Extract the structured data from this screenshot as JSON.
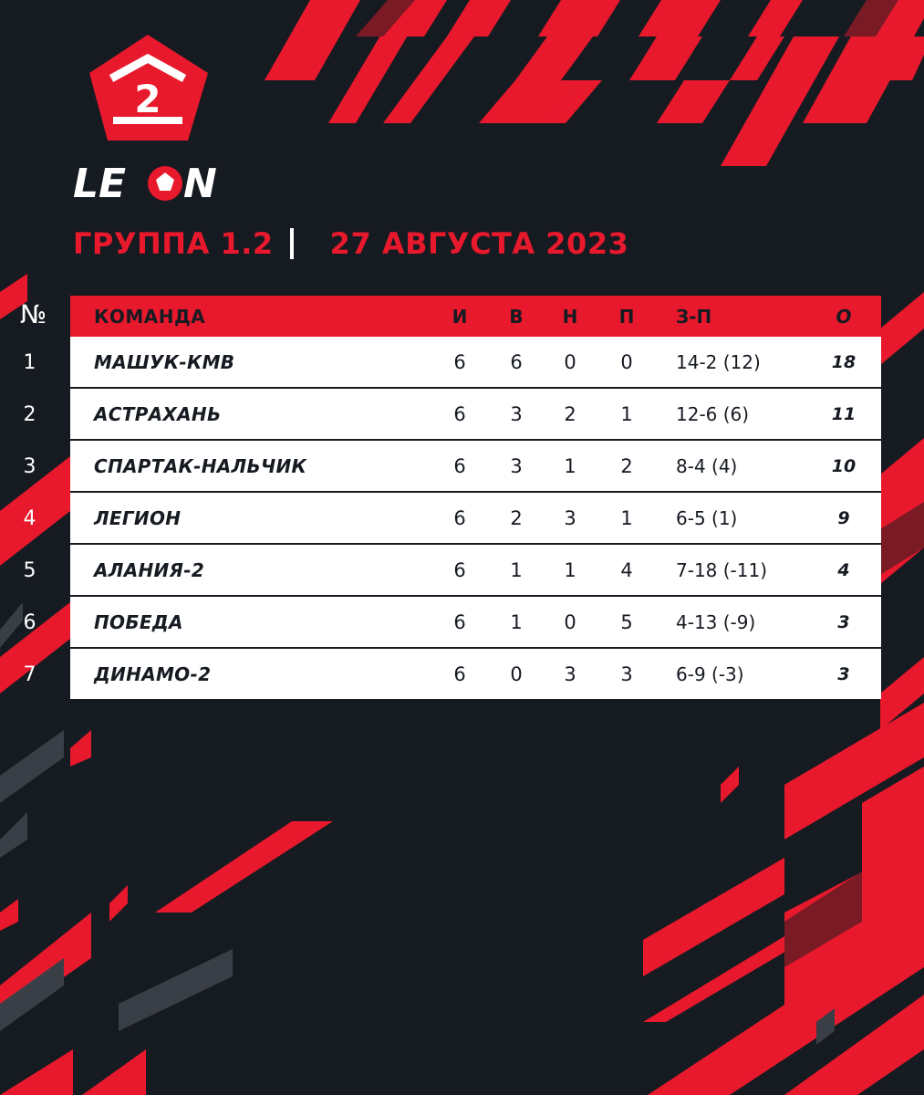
{
  "brand": {
    "logo_number": "2",
    "logo_text_left": "LE",
    "logo_text_right": "N"
  },
  "heading": {
    "group": "ГРУППА 1.2",
    "date": "27 АВГУСТА 2023"
  },
  "table": {
    "num_header": "№",
    "headers": {
      "team": "КОМАНДА",
      "played": "И",
      "won": "В",
      "drawn": "Н",
      "lost": "П",
      "goals": "З-П",
      "points": "О"
    },
    "rows": [
      {
        "pos": "1",
        "team": "МАШУК-КМВ",
        "played": "6",
        "won": "6",
        "drawn": "0",
        "lost": "0",
        "goals": "14-2 (12)",
        "points": "18"
      },
      {
        "pos": "2",
        "team": "АСТРАХАНЬ",
        "played": "6",
        "won": "3",
        "drawn": "2",
        "lost": "1",
        "goals": "12-6 (6)",
        "points": "11"
      },
      {
        "pos": "3",
        "team": "СПАРТАК-НАЛЬЧИК",
        "played": "6",
        "won": "3",
        "drawn": "1",
        "lost": "2",
        "goals": "8-4 (4)",
        "points": "10"
      },
      {
        "pos": "4",
        "team": "ЛЕГИОН",
        "played": "6",
        "won": "2",
        "drawn": "3",
        "lost": "1",
        "goals": "6-5 (1)",
        "points": "9"
      },
      {
        "pos": "5",
        "team": "АЛАНИЯ-2",
        "played": "6",
        "won": "1",
        "drawn": "1",
        "lost": "4",
        "goals": "7-18 (-11)",
        "points": "4"
      },
      {
        "pos": "6",
        "team": "ПОБЕДА",
        "played": "6",
        "won": "1",
        "drawn": "0",
        "lost": "5",
        "goals": "4-13 (-9)",
        "points": "3"
      },
      {
        "pos": "7",
        "team": "ДИНАМО-2",
        "played": "6",
        "won": "0",
        "drawn": "3",
        "lost": "3",
        "goals": "6-9 (-3)",
        "points": "3"
      }
    ]
  },
  "colors": {
    "background": "#161a21",
    "accent": "#e8192c",
    "row": "#ffffff",
    "stripe_dark": "#3a3f47"
  }
}
